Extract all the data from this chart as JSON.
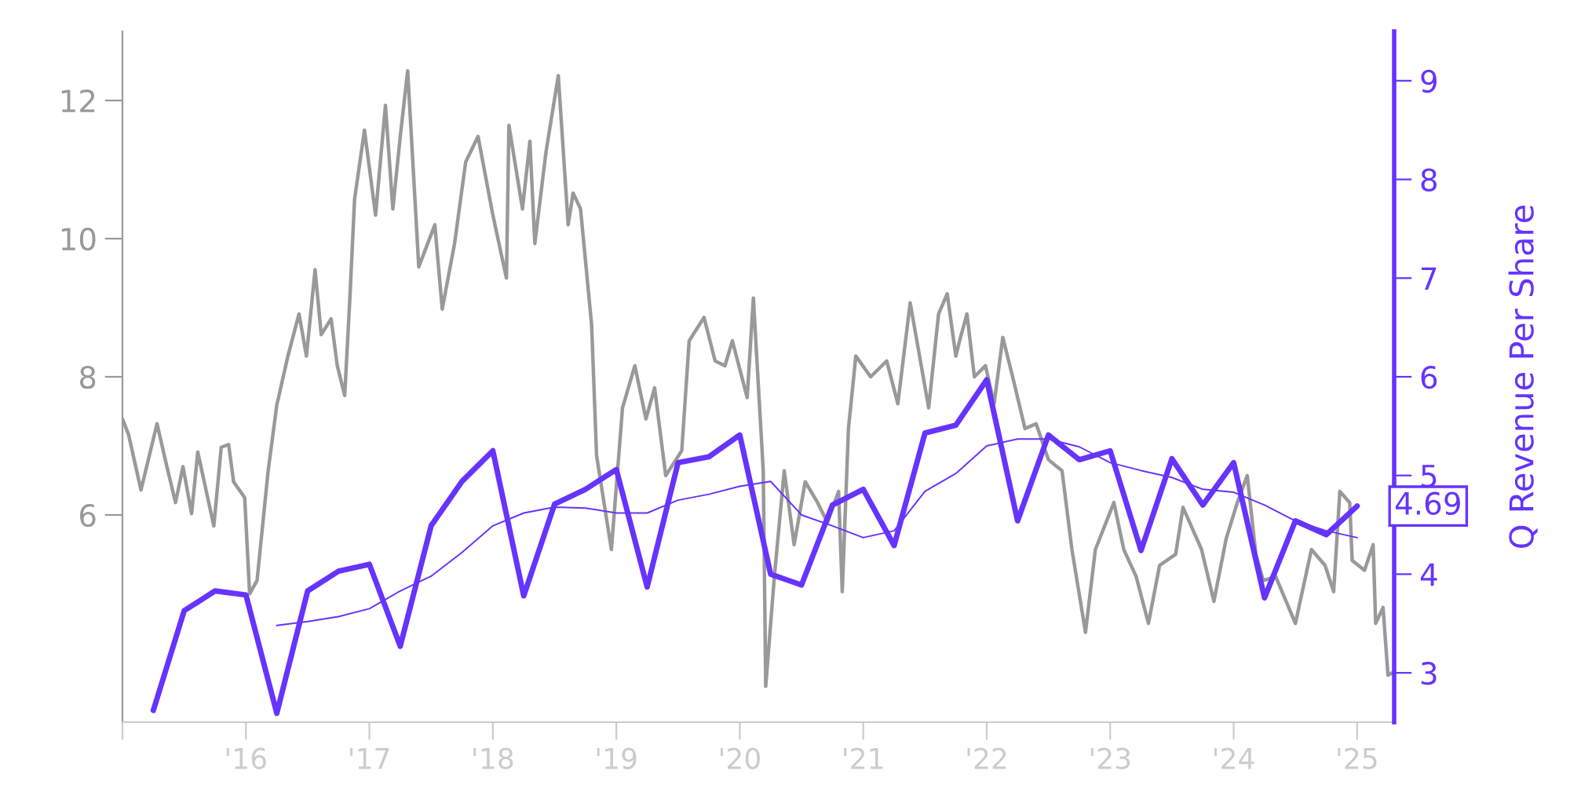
{
  "chart_data": {
    "type": "line",
    "y2label": "Q Revenue Per Share",
    "xlim": [
      2015,
      2025.3
    ],
    "xticks": [
      {
        "value": 2015,
        "label": null
      },
      {
        "value": 2016,
        "label": "'16"
      },
      {
        "value": 2017,
        "label": "'17"
      },
      {
        "value": 2018,
        "label": "'18"
      },
      {
        "value": 2019,
        "label": "'19"
      },
      {
        "value": 2020,
        "label": "'20"
      },
      {
        "value": 2021,
        "label": "'21"
      },
      {
        "value": 2022,
        "label": "'22"
      },
      {
        "value": 2023,
        "label": "'23"
      },
      {
        "value": 2024,
        "label": "'24"
      },
      {
        "value": 2025,
        "label": "'25"
      }
    ],
    "ylim": [
      3,
      13
    ],
    "yticks": [
      6,
      8,
      10,
      12
    ],
    "y2lim": [
      2.5,
      9.5
    ],
    "y2ticks": [
      3,
      4,
      5,
      6,
      7,
      8,
      9
    ],
    "grid": false,
    "series": [
      {
        "color": "#999999",
        "x": [
          2015.0,
          2015.05,
          2015.15,
          2015.28,
          2015.36,
          2015.43,
          2015.49,
          2015.56,
          2015.61,
          2015.74,
          2015.8,
          2015.86,
          2015.9,
          2015.99,
          2016.03,
          2016.09,
          2016.18,
          2016.25,
          2016.34,
          2016.43,
          2016.49,
          2016.56,
          2016.61,
          2016.69,
          2016.74,
          2016.8,
          2016.84,
          2016.88,
          2016.96,
          2017.05,
          2017.13,
          2017.19,
          2017.25,
          2017.31,
          2017.4,
          2017.53,
          2017.59,
          2017.69,
          2017.78,
          2017.88,
          2018.0,
          2018.11,
          2018.13,
          2018.24,
          2018.3,
          2018.34,
          2018.43,
          2018.53,
          2018.61,
          2018.65,
          2018.71,
          2018.8,
          2018.84,
          2018.96,
          2019.05,
          2019.15,
          2019.24,
          2019.31,
          2019.4,
          2019.53,
          2019.59,
          2019.71,
          2019.8,
          2019.88,
          2019.94,
          2020.06,
          2020.11,
          2020.19,
          2020.21,
          2020.28,
          2020.36,
          2020.44,
          2020.53,
          2020.63,
          2020.71,
          2020.8,
          2020.83,
          2020.88,
          2020.94,
          2021.06,
          2021.19,
          2021.28,
          2021.38,
          2021.53,
          2021.61,
          2021.68,
          2021.75,
          2021.78,
          2021.84,
          2021.9,
          2021.99,
          2022.06,
          2022.13,
          2022.21,
          2022.31,
          2022.4,
          2022.5,
          2022.61,
          2022.69,
          2022.8,
          2022.88,
          2023.03,
          2023.11,
          2023.21,
          2023.31,
          2023.4,
          2023.53,
          2023.59,
          2023.74,
          2023.84,
          2023.94,
          2024.03,
          2024.11,
          2024.18,
          2024.24,
          2024.34,
          2024.5,
          2024.63,
          2024.74,
          2024.81,
          2024.86,
          2024.94,
          2024.96,
          2025.06,
          2025.13,
          2025.15,
          2025.21,
          2025.25,
          2025.3
        ],
        "values": [
          7.39,
          7.16,
          6.36,
          7.32,
          6.7,
          6.18,
          6.7,
          6.02,
          6.91,
          5.84,
          6.98,
          7.02,
          6.48,
          6.25,
          4.86,
          5.05,
          6.64,
          7.59,
          8.3,
          8.91,
          8.3,
          9.55,
          8.61,
          8.84,
          8.16,
          7.73,
          9.07,
          10.57,
          11.57,
          10.34,
          11.93,
          10.43,
          11.48,
          12.43,
          9.59,
          10.2,
          8.98,
          9.93,
          11.11,
          11.48,
          10.34,
          9.43,
          11.64,
          10.43,
          11.41,
          9.93,
          11.25,
          12.36,
          10.2,
          10.66,
          10.43,
          8.75,
          6.86,
          5.5,
          7.55,
          8.16,
          7.39,
          7.84,
          6.57,
          6.93,
          8.52,
          8.86,
          8.23,
          8.16,
          8.52,
          7.7,
          9.14,
          6.64,
          3.52,
          5.11,
          6.64,
          5.57,
          6.48,
          6.18,
          5.89,
          6.34,
          4.89,
          7.25,
          8.3,
          8.0,
          8.23,
          7.61,
          9.07,
          7.55,
          8.91,
          9.2,
          8.3,
          8.52,
          8.91,
          8.0,
          8.16,
          7.61,
          8.57,
          8.0,
          7.25,
          7.32,
          6.8,
          6.64,
          5.5,
          4.3,
          5.5,
          6.18,
          5.5,
          5.11,
          4.43,
          5.27,
          5.43,
          6.11,
          5.5,
          4.75,
          5.66,
          6.18,
          6.57,
          5.43,
          5.05,
          5.11,
          4.43,
          5.5,
          5.27,
          4.89,
          6.34,
          6.18,
          5.34,
          5.2,
          5.57,
          4.43,
          4.66,
          3.68,
          3.73
        ]
      },
      {
        "color": "#6633ff",
        "axis": "y2",
        "x": [
          2015.25,
          2015.5,
          2015.75,
          2016.0,
          2016.25,
          2016.5,
          2016.75,
          2017.0,
          2017.25,
          2017.5,
          2017.75,
          2018.0,
          2018.25,
          2018.5,
          2018.75,
          2019.0,
          2019.25,
          2019.5,
          2019.75,
          2020.0,
          2020.25,
          2020.5,
          2020.75,
          2021.0,
          2021.25,
          2021.5,
          2021.75,
          2022.0,
          2022.25,
          2022.5,
          2022.75,
          2023.0,
          2023.25,
          2023.5,
          2023.75,
          2024.0,
          2024.25,
          2024.5,
          2024.75,
          2025.0
        ],
        "values": [
          2.62,
          3.63,
          3.83,
          3.79,
          2.59,
          3.83,
          4.03,
          4.1,
          3.27,
          4.49,
          4.94,
          5.25,
          3.78,
          4.71,
          4.86,
          5.06,
          3.87,
          5.13,
          5.19,
          5.41,
          4.0,
          3.89,
          4.7,
          4.86,
          4.29,
          5.43,
          5.51,
          5.97,
          4.54,
          5.41,
          5.16,
          5.25,
          4.24,
          5.17,
          4.7,
          5.13,
          3.76,
          4.54,
          4.4,
          4.69
        ],
        "value_labels": [
          null,
          null,
          null,
          null,
          null,
          null,
          null,
          null,
          null,
          null,
          null,
          null,
          null,
          null,
          null,
          null,
          null,
          null,
          null,
          null,
          null,
          null,
          null,
          null,
          null,
          null,
          null,
          null,
          null,
          null,
          null,
          null,
          null,
          null,
          null,
          null,
          null,
          null,
          null,
          "4.69"
        ]
      },
      {
        "color": "#6633ff",
        "axis": "y2",
        "x": [
          2016.25,
          2016.5,
          2016.75,
          2017.0,
          2017.25,
          2017.5,
          2017.75,
          2018.0,
          2018.25,
          2018.5,
          2018.75,
          2019.0,
          2019.25,
          2019.5,
          2019.75,
          2020.0,
          2020.25,
          2020.5,
          2020.75,
          2021.0,
          2021.25,
          2021.5,
          2021.75,
          2022.0,
          2022.25,
          2022.5,
          2022.75,
          2023.0,
          2023.25,
          2023.5,
          2023.75,
          2024.0,
          2024.25,
          2024.5,
          2024.75,
          2025.0
        ],
        "values": [
          3.48,
          3.52,
          3.57,
          3.65,
          3.83,
          3.98,
          4.22,
          4.49,
          4.62,
          4.68,
          4.67,
          4.62,
          4.62,
          4.75,
          4.81,
          4.89,
          4.94,
          4.6,
          4.49,
          4.37,
          4.44,
          4.84,
          5.02,
          5.3,
          5.37,
          5.37,
          5.29,
          5.13,
          5.05,
          4.98,
          4.86,
          4.83,
          4.7,
          4.54,
          4.44,
          4.37
        ]
      }
    ]
  }
}
